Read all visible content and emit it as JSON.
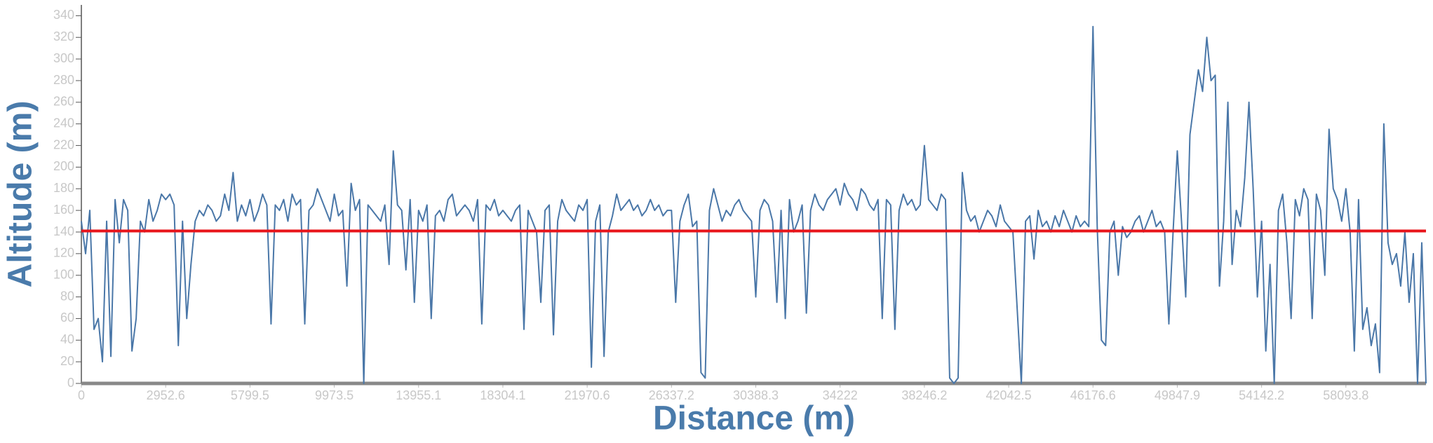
{
  "chart_data": {
    "type": "line",
    "x_label": "Distance (m)",
    "y_label": "Altitude (m)",
    "ylim": [
      0,
      350
    ],
    "yticks": [
      0,
      20,
      40,
      60,
      80,
      100,
      120,
      140,
      160,
      180,
      200,
      220,
      240,
      260,
      280,
      300,
      320,
      340
    ],
    "reference_line": {
      "value": 141,
      "color": "#e8141a"
    },
    "categories": [
      "0",
      null,
      null,
      null,
      null,
      null,
      null,
      null,
      null,
      null,
      null,
      null,
      null,
      null,
      null,
      null,
      null,
      null,
      null,
      null,
      "2952.6",
      null,
      null,
      null,
      null,
      null,
      null,
      null,
      null,
      null,
      null,
      null,
      null,
      null,
      null,
      null,
      null,
      null,
      null,
      null,
      "5799.5",
      null,
      null,
      null,
      null,
      null,
      null,
      null,
      null,
      null,
      null,
      null,
      null,
      null,
      null,
      null,
      null,
      null,
      null,
      null,
      "9973.5",
      null,
      null,
      null,
      null,
      null,
      null,
      null,
      null,
      null,
      null,
      null,
      null,
      null,
      null,
      null,
      null,
      null,
      null,
      null,
      "13955.1",
      null,
      null,
      null,
      null,
      null,
      null,
      null,
      null,
      null,
      null,
      null,
      null,
      null,
      null,
      null,
      null,
      null,
      null,
      null,
      "18304.1",
      null,
      null,
      null,
      null,
      null,
      null,
      null,
      null,
      null,
      null,
      null,
      null,
      null,
      null,
      null,
      null,
      null,
      null,
      null,
      "21970.6",
      null,
      null,
      null,
      null,
      null,
      null,
      null,
      null,
      null,
      null,
      null,
      null,
      null,
      null,
      null,
      null,
      null,
      null,
      null,
      "26337.2",
      null,
      null,
      null,
      null,
      null,
      null,
      null,
      null,
      null,
      null,
      null,
      null,
      null,
      null,
      null,
      null,
      null,
      null,
      null,
      "30388.3",
      null,
      null,
      null,
      null,
      null,
      null,
      null,
      null,
      null,
      null,
      null,
      null,
      null,
      null,
      null,
      null,
      null,
      null,
      null,
      "34222",
      null,
      null,
      null,
      null,
      null,
      null,
      null,
      null,
      null,
      null,
      null,
      null,
      null,
      null,
      null,
      null,
      null,
      null,
      null,
      "38246.2",
      null,
      null,
      null,
      null,
      null,
      null,
      null,
      null,
      null,
      null,
      null,
      null,
      null,
      null,
      null,
      null,
      null,
      null,
      null,
      "42042.5",
      null,
      null,
      null,
      null,
      null,
      null,
      null,
      null,
      null,
      null,
      null,
      null,
      null,
      null,
      null,
      null,
      null,
      null,
      null,
      "46176.6",
      null,
      null,
      null,
      null,
      null,
      null,
      null,
      null,
      null,
      null,
      null,
      null,
      null,
      null,
      null,
      null,
      null,
      null,
      null,
      "49847.9",
      null,
      null,
      null,
      null,
      null,
      null,
      null,
      null,
      null,
      null,
      null,
      null,
      null,
      null,
      null,
      null,
      null,
      null,
      null,
      "54142.2",
      null,
      null,
      null,
      null,
      null,
      null,
      null,
      null,
      null,
      null,
      null,
      null,
      null,
      null,
      null,
      null,
      null,
      null,
      null,
      "58093.8",
      null,
      null,
      null,
      null,
      null,
      null,
      null,
      null,
      null,
      null,
      null,
      null,
      null,
      null,
      null,
      null,
      null,
      null,
      null
    ],
    "series": [
      {
        "color": "#4a77a8",
        "values": [
          150,
          120,
          160,
          50,
          60,
          20,
          150,
          25,
          170,
          130,
          170,
          160,
          30,
          60,
          150,
          140,
          170,
          150,
          160,
          175,
          170,
          175,
          165,
          35,
          150,
          60,
          110,
          150,
          160,
          155,
          165,
          160,
          150,
          155,
          175,
          160,
          195,
          150,
          165,
          155,
          170,
          150,
          160,
          175,
          165,
          55,
          165,
          160,
          170,
          150,
          175,
          165,
          170,
          55,
          160,
          165,
          180,
          170,
          160,
          150,
          175,
          155,
          160,
          90,
          185,
          160,
          170,
          0,
          165,
          160,
          155,
          150,
          165,
          110,
          215,
          165,
          160,
          105,
          170,
          75,
          160,
          150,
          165,
          60,
          155,
          160,
          150,
          170,
          175,
          155,
          160,
          165,
          160,
          150,
          170,
          55,
          165,
          160,
          170,
          155,
          160,
          155,
          150,
          160,
          165,
          50,
          160,
          150,
          140,
          75,
          160,
          165,
          45,
          150,
          170,
          160,
          155,
          150,
          165,
          160,
          170,
          15,
          150,
          165,
          25,
          140,
          155,
          175,
          160,
          165,
          170,
          160,
          165,
          155,
          160,
          170,
          160,
          165,
          155,
          160,
          160,
          75,
          150,
          165,
          175,
          145,
          150,
          10,
          5,
          160,
          180,
          165,
          150,
          160,
          155,
          165,
          170,
          160,
          155,
          150,
          80,
          160,
          170,
          165,
          150,
          75,
          160,
          60,
          170,
          140,
          150,
          165,
          65,
          160,
          175,
          165,
          160,
          170,
          175,
          180,
          165,
          185,
          175,
          170,
          160,
          180,
          175,
          165,
          160,
          170,
          60,
          170,
          165,
          50,
          160,
          175,
          165,
          170,
          160,
          165,
          220,
          170,
          165,
          160,
          175,
          170,
          5,
          0,
          5,
          195,
          160,
          150,
          155,
          140,
          150,
          160,
          155,
          145,
          165,
          150,
          145,
          140,
          70,
          0,
          150,
          155,
          115,
          160,
          145,
          150,
          140,
          155,
          145,
          160,
          150,
          140,
          155,
          145,
          150,
          145,
          330,
          145,
          40,
          35,
          140,
          150,
          100,
          145,
          135,
          140,
          150,
          155,
          140,
          150,
          160,
          145,
          150,
          140,
          55,
          140,
          215,
          150,
          80,
          230,
          260,
          290,
          270,
          320,
          280,
          285,
          90,
          150,
          260,
          110,
          160,
          145,
          190,
          260,
          180,
          80,
          150,
          30,
          110,
          0,
          160,
          175,
          130,
          60,
          170,
          155,
          180,
          170,
          60,
          175,
          160,
          100,
          235,
          180,
          170,
          150,
          180,
          140,
          30,
          170,
          50,
          70,
          35,
          55,
          10,
          240,
          130,
          110,
          120,
          90,
          140,
          75,
          120,
          0,
          130,
          0
        ]
      }
    ]
  }
}
